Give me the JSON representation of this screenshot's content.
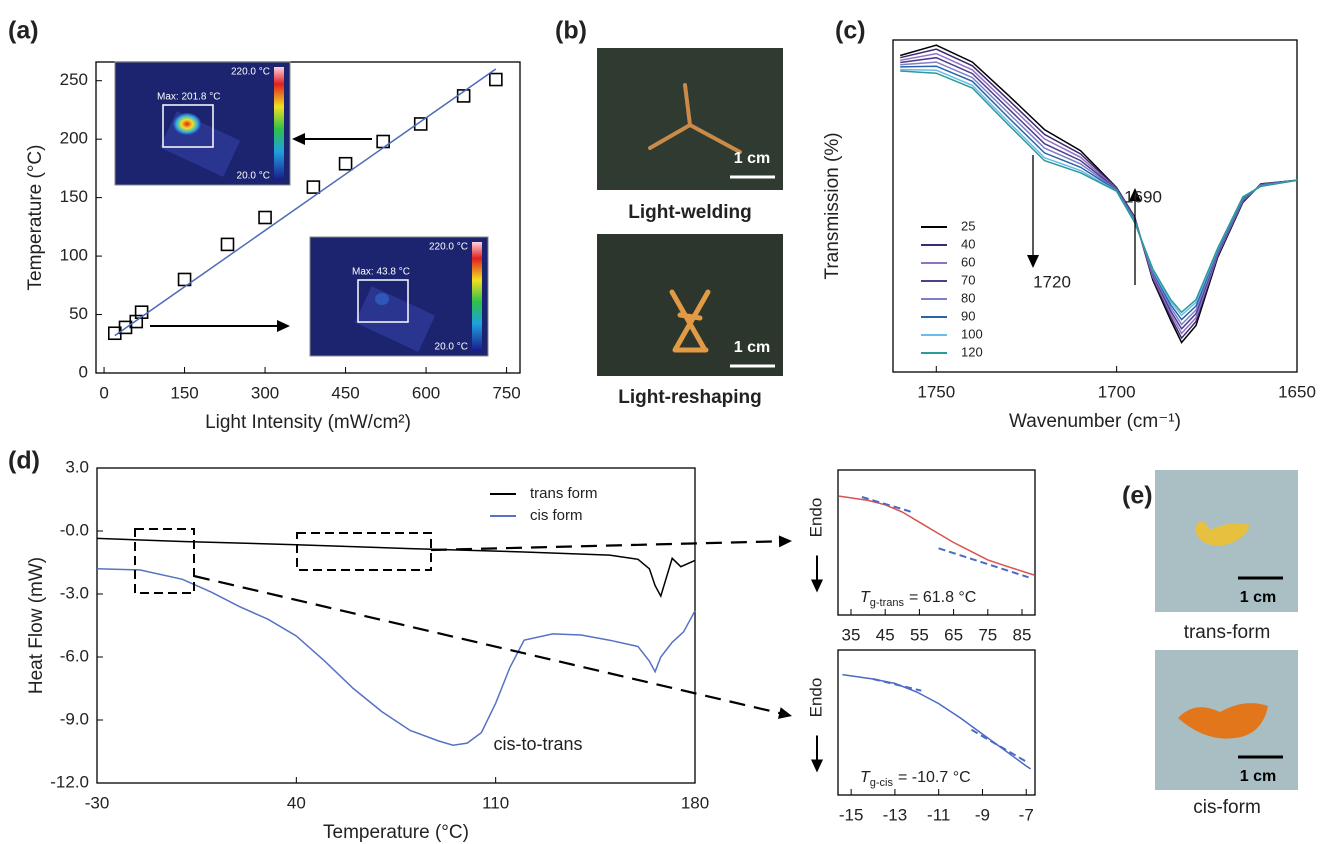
{
  "chart_data": [
    {
      "type": "scatter",
      "label": "(a)",
      "xlabel": "Light Intensity (mW/cm²)",
      "ylabel": "Temperature (°C)",
      "xlim": [
        -15,
        775
      ],
      "xticks": [
        0,
        150,
        300,
        450,
        600,
        750
      ],
      "ylim": [
        0,
        266
      ],
      "yticks": [
        0,
        50,
        100,
        150,
        200,
        250
      ],
      "series": [
        {
          "x": [
            20,
            40,
            60,
            70,
            150,
            230,
            300,
            390,
            450,
            520,
            590,
            670,
            730
          ],
          "values": [
            34,
            39,
            44,
            52,
            80,
            110,
            133,
            159,
            179,
            198,
            213,
            237,
            251
          ],
          "color": "#000000",
          "style": "square"
        },
        {
          "x": [
            20,
            730
          ],
          "values": [
            32,
            260
          ],
          "color": "#4a6bb5",
          "style": "line"
        }
      ],
      "insets": [
        {
          "max": "Max: 201.8 °C",
          "high": "220.0 °C",
          "low": "20.0 °C"
        },
        {
          "max": "Max: 43.8 °C",
          "high": "220.0 °C",
          "low": "20.0 °C"
        }
      ]
    },
    {
      "type": "photo",
      "label": "(b)",
      "images": [
        {
          "caption": "Light-welding",
          "scale": "1 cm"
        },
        {
          "caption": "Light-reshaping",
          "scale": "1 cm"
        }
      ]
    },
    {
      "type": "line",
      "label": "(c)",
      "xlabel": "Wavenumber (cm⁻¹)",
      "ylabel": "Transmission (%)",
      "xlim": [
        1762,
        1650
      ],
      "xticks": [
        1750,
        1700,
        1650
      ],
      "ylim": [
        5,
        95
      ],
      "legend": "lower left",
      "annotations": [
        "1720",
        "1690"
      ],
      "x": [
        1760,
        1750,
        1740,
        1730,
        1720,
        1710,
        1700,
        1695,
        1690,
        1685,
        1682,
        1678,
        1672,
        1665,
        1660,
        1650
      ],
      "series": [
        {
          "name": "25",
          "color": "#000000",
          "values": [
            90.8,
            93.6,
            89,
            80,
            70.7,
            65,
            55,
            47,
            30,
            19,
            13,
            17.6,
            36,
            51,
            56,
            57
          ]
        },
        {
          "name": "40",
          "color": "#3b2a70",
          "values": [
            90.2,
            92.5,
            88,
            78.8,
            69.4,
            64.1,
            54.9,
            46.8,
            30.5,
            19.8,
            14.2,
            18.7,
            36.4,
            51.2,
            55.9,
            57
          ]
        },
        {
          "name": "60",
          "color": "#9370c4",
          "values": [
            89.5,
            91.3,
            86.9,
            77.6,
            68.2,
            63.2,
            54.7,
            46.6,
            30.9,
            20.7,
            15.5,
            19.7,
            36.8,
            51.5,
            55.8,
            57
          ]
        },
        {
          "name": "70",
          "color": "#4a3f92",
          "values": [
            88.9,
            90.2,
            85.9,
            76.4,
            66.9,
            62.3,
            54.6,
            46.3,
            31.4,
            21.5,
            16.7,
            20.8,
            37.1,
            51.7,
            55.7,
            57
          ]
        },
        {
          "name": "80",
          "color": "#7e80c6",
          "values": [
            88.3,
            89.0,
            84.8,
            75.2,
            65.7,
            61.4,
            54.4,
            46.1,
            31.8,
            22.4,
            17.9,
            21.8,
            37.5,
            51.9,
            55.6,
            57
          ]
        },
        {
          "name": "90",
          "color": "#2a63a8",
          "values": [
            87.7,
            87.9,
            83.8,
            74,
            64.4,
            60.5,
            54.3,
            45.9,
            32.3,
            23.2,
            19.2,
            22.9,
            37.9,
            52.1,
            55.5,
            57
          ]
        },
        {
          "name": "100",
          "color": "#6dbbe8",
          "values": [
            87.0,
            86.8,
            82.7,
            72.8,
            63.1,
            59.6,
            54.1,
            45.7,
            32.7,
            24,
            20.4,
            23.9,
            38.3,
            52.4,
            55.4,
            57
          ]
        },
        {
          "name": "120",
          "color": "#2a9a9a",
          "values": [
            86.6,
            86,
            82,
            72,
            62.3,
            59,
            54,
            45.5,
            33,
            24.6,
            21.2,
            24.6,
            38.5,
            52.5,
            55.3,
            57
          ]
        }
      ]
    },
    {
      "type": "line",
      "label": "(d)",
      "xlabel": "Temperature (°C)",
      "ylabel": "Heat Flow (mW)",
      "xlim": [
        -30,
        180
      ],
      "xticks": [
        -30,
        40,
        110,
        180
      ],
      "ylim": [
        -12,
        3
      ],
      "yticks": [
        {
          "value": 3,
          "label": "3.0"
        },
        {
          "value": 0,
          "label": "-0.0"
        },
        {
          "value": -3,
          "label": "-3.0"
        },
        {
          "value": -6,
          "label": "-6.0"
        },
        {
          "value": -9,
          "label": "-9.0"
        },
        {
          "value": -12,
          "label": "-12.0"
        }
      ],
      "legend": "upper right",
      "annotations": [
        "cis-to-trans"
      ],
      "series": [
        {
          "name": "trans form",
          "color": "#000000",
          "x": [
            -30,
            0,
            40,
            80,
            120,
            150,
            160,
            164,
            166,
            168,
            170,
            172,
            175,
            180
          ],
          "values": [
            -0.35,
            -0.5,
            -0.65,
            -0.84,
            -1.0,
            -1.15,
            -1.35,
            -1.8,
            -2.6,
            -3.1,
            -2.2,
            -1.3,
            -1.7,
            -1.4
          ]
        },
        {
          "name": "cis form",
          "color": "#5672c4",
          "x": [
            -30,
            -15,
            0,
            10,
            20,
            30,
            40,
            50,
            60,
            70,
            80,
            90,
            95,
            100,
            105,
            110,
            115,
            120,
            130,
            140,
            150,
            160,
            164,
            166,
            168,
            172,
            176,
            180
          ],
          "values": [
            -1.8,
            -1.85,
            -2.3,
            -2.9,
            -3.6,
            -4.2,
            -5.0,
            -6.2,
            -7.5,
            -8.6,
            -9.5,
            -10.0,
            -10.2,
            -10.1,
            -9.6,
            -8.2,
            -6.5,
            -5.2,
            -4.9,
            -4.95,
            -5.2,
            -5.5,
            -6.2,
            -6.7,
            -6.0,
            -5.3,
            -4.8,
            -3.8
          ]
        }
      ]
    },
    {
      "type": "line",
      "xlim": [
        31.2,
        88.8
      ],
      "xticks": [
        35,
        45,
        55,
        65,
        75,
        85
      ],
      "ylim": [
        0,
        100
      ],
      "annotations": [
        "Endo"
      ],
      "tg": {
        "symbol": "T",
        "subscript": "g-trans",
        "text": "= 61.8 °C"
      },
      "series": [
        {
          "color": "#d9534f",
          "x": [
            31.5,
            40,
            45,
            50,
            55,
            60,
            65,
            70,
            75,
            80,
            88.5
          ],
          "values": [
            82,
            79,
            76,
            71,
            64,
            57,
            50,
            44,
            38,
            34,
            27.6
          ]
        },
        {
          "color": "#4a6bc4",
          "dash": true,
          "x": [
            38.2,
            52.8
          ],
          "values": [
            81.4,
            71
          ]
        },
        {
          "color": "#4a6bc4",
          "dash": true,
          "x": [
            60.6,
            86.9
          ],
          "values": [
            46,
            26
          ]
        }
      ]
    },
    {
      "type": "line",
      "xlim": [
        -15.6,
        -6.6
      ],
      "xticks": [
        -15,
        -13,
        -11,
        -9,
        -7
      ],
      "ylim": [
        0,
        100
      ],
      "annotations": [
        "Endo"
      ],
      "tg": {
        "symbol": "T",
        "subscript": "g-cis",
        "text": "= -10.7 °C"
      },
      "series": [
        {
          "color": "#4a6bc4",
          "x": [
            -15.4,
            -14,
            -13,
            -12,
            -11,
            -10,
            -9,
            -8,
            -7,
            -6.8
          ],
          "values": [
            83,
            80,
            77,
            71,
            63,
            53,
            42,
            31,
            20,
            18
          ]
        },
        {
          "color": "#4a6bc4",
          "dash": true,
          "x": [
            -14,
            -11.8
          ],
          "values": [
            80,
            72
          ]
        },
        {
          "color": "#4a6bc4",
          "dash": true,
          "x": [
            -9.5,
            -7
          ],
          "values": [
            45,
            23
          ]
        }
      ]
    },
    {
      "type": "photo",
      "label": "(e)",
      "images": [
        {
          "caption": "trans-form",
          "scale": "1 cm"
        },
        {
          "caption": "cis-form",
          "scale": "1 cm"
        }
      ]
    }
  ]
}
